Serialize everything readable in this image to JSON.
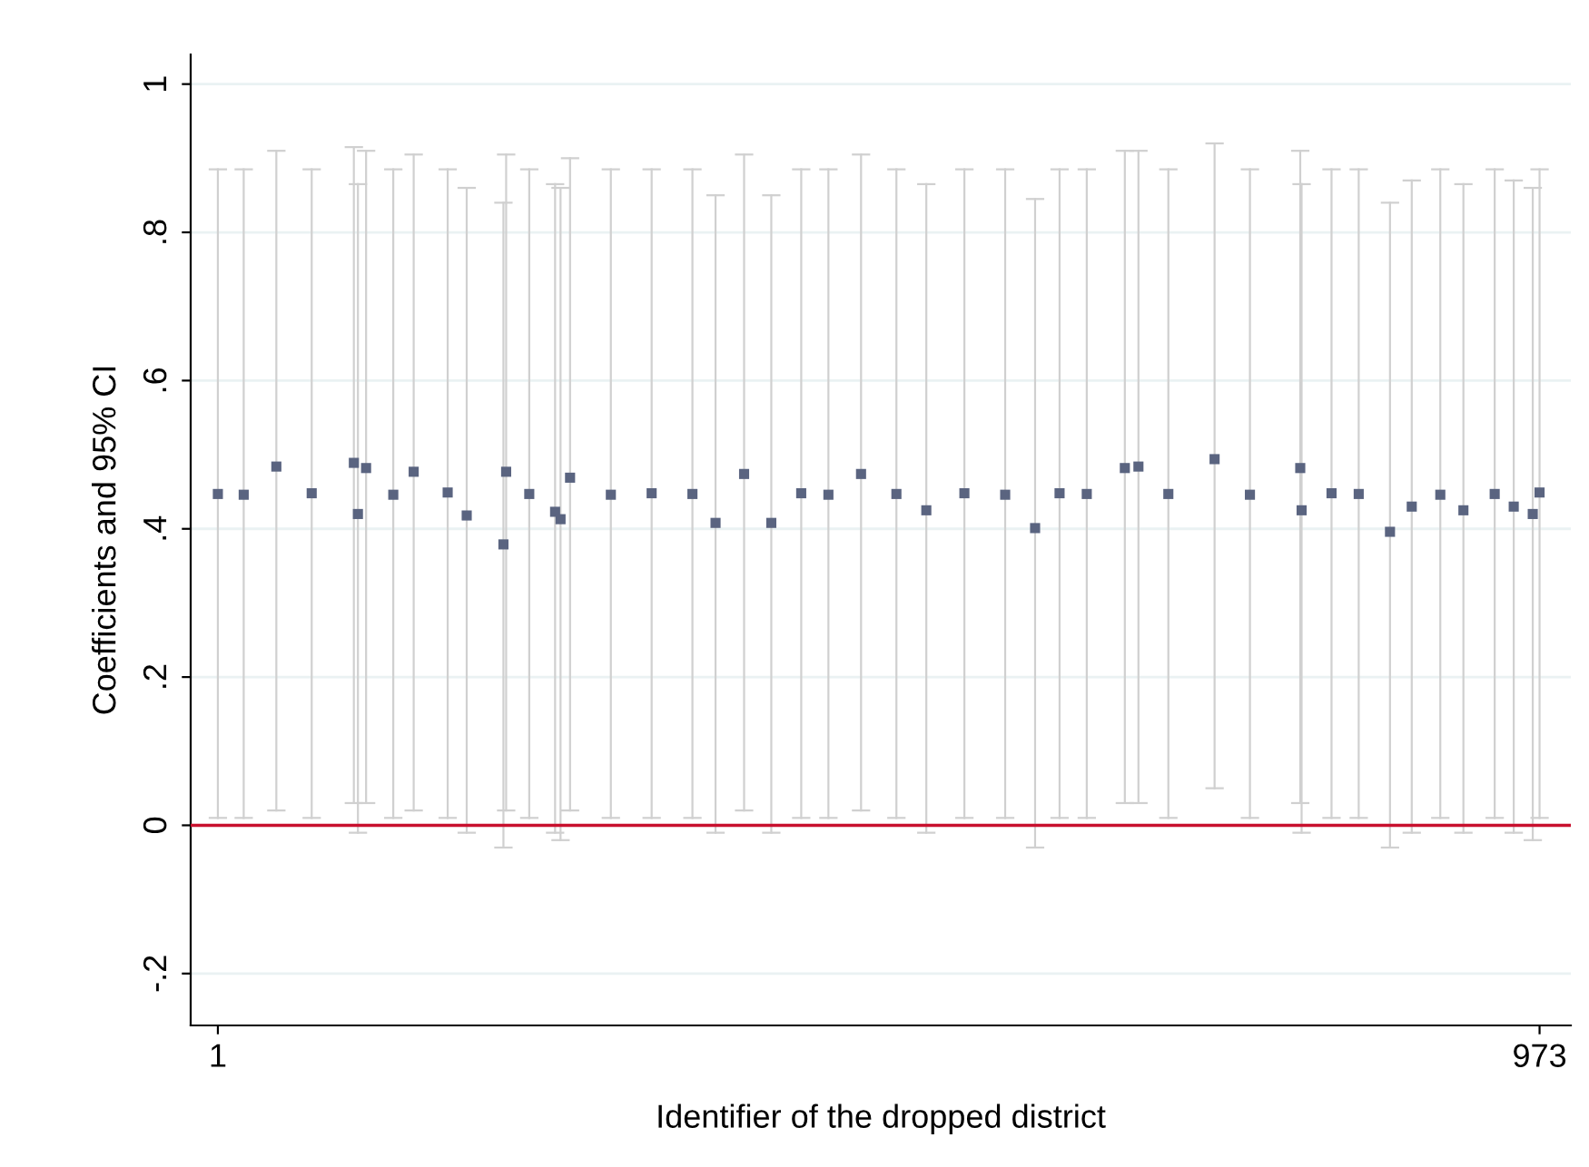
{
  "chart_data": {
    "type": "scatter",
    "xlabel": "Identifier of the dropped district",
    "ylabel": "Coefficients and 95% CI",
    "x": [
      1,
      20,
      44,
      70,
      101,
      104,
      110,
      130,
      145,
      170,
      184,
      211,
      213,
      230,
      249,
      253,
      260,
      290,
      320,
      350,
      367,
      388,
      408,
      430,
      450,
      474,
      500,
      522,
      550,
      580,
      602,
      620,
      640,
      668,
      678,
      700,
      734,
      760,
      797,
      798,
      820,
      840,
      863,
      879,
      900,
      917,
      940,
      954,
      968,
      973
    ],
    "series": [
      {
        "color": "#5a6480",
        "values": [
          0.447,
          0.446,
          0.484,
          0.448,
          0.489,
          0.42,
          0.482,
          0.446,
          0.477,
          0.449,
          0.418,
          0.379,
          0.477,
          0.447,
          0.423,
          0.413,
          0.469,
          0.446,
          0.448,
          0.447,
          0.408,
          0.474,
          0.408,
          0.448,
          0.446,
          0.474,
          0.447,
          0.425,
          0.448,
          0.446,
          0.401,
          0.448,
          0.447,
          0.482,
          0.484,
          0.447,
          0.494,
          0.446,
          0.482,
          0.425,
          0.448,
          0.447,
          0.396,
          0.43,
          0.446,
          0.425,
          0.447,
          0.43,
          0.42,
          0.449
        ],
        "errors": [
          [
            0.01,
            0.885
          ],
          [
            0.01,
            0.885
          ],
          [
            0.02,
            0.91
          ],
          [
            0.01,
            0.885
          ],
          [
            0.03,
            0.915
          ],
          [
            -0.01,
            0.865
          ],
          [
            0.03,
            0.91
          ],
          [
            0.01,
            0.885
          ],
          [
            0.02,
            0.905
          ],
          [
            0.01,
            0.885
          ],
          [
            -0.01,
            0.86
          ],
          [
            -0.03,
            0.84
          ],
          [
            0.02,
            0.905
          ],
          [
            0.01,
            0.885
          ],
          [
            -0.01,
            0.865
          ],
          [
            -0.02,
            0.86
          ],
          [
            0.02,
            0.9
          ],
          [
            0.01,
            0.885
          ],
          [
            0.01,
            0.885
          ],
          [
            0.01,
            0.885
          ],
          [
            -0.01,
            0.85
          ],
          [
            0.02,
            0.905
          ],
          [
            -0.01,
            0.85
          ],
          [
            0.01,
            0.885
          ],
          [
            0.01,
            0.885
          ],
          [
            0.02,
            0.905
          ],
          [
            0.01,
            0.885
          ],
          [
            -0.01,
            0.865
          ],
          [
            0.01,
            0.885
          ],
          [
            0.01,
            0.885
          ],
          [
            -0.03,
            0.845
          ],
          [
            0.01,
            0.885
          ],
          [
            0.01,
            0.885
          ],
          [
            0.03,
            0.91
          ],
          [
            0.03,
            0.91
          ],
          [
            0.01,
            0.885
          ],
          [
            0.05,
            0.92
          ],
          [
            0.01,
            0.885
          ],
          [
            0.03,
            0.91
          ],
          [
            -0.01,
            0.865
          ],
          [
            0.01,
            0.885
          ],
          [
            0.01,
            0.885
          ],
          [
            -0.03,
            0.84
          ],
          [
            -0.01,
            0.87
          ],
          [
            0.01,
            0.885
          ],
          [
            -0.01,
            0.865
          ],
          [
            0.01,
            0.885
          ],
          [
            -0.01,
            0.87
          ],
          [
            -0.02,
            0.86
          ],
          [
            0.01,
            0.885
          ]
        ]
      }
    ],
    "xlim": [
      -19,
      996
    ],
    "xticks": [
      1,
      973
    ],
    "ylim": [
      -0.27,
      1.04
    ],
    "yticks": [
      {
        "value": -0.2,
        "label": "-.2"
      },
      0,
      {
        "value": 0.2,
        "label": ".2"
      },
      {
        "value": 0.4,
        "label": ".4"
      },
      {
        "value": 0.6,
        "label": ".6"
      },
      {
        "value": 0.8,
        "label": ".8"
      },
      1
    ],
    "ref_lines": [
      {
        "axis": "y",
        "value": 0,
        "color": "#c8102e"
      }
    ],
    "grid": "y",
    "marker": "square"
  }
}
